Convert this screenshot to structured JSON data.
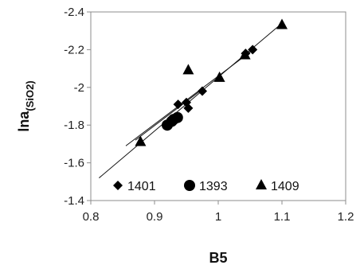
{
  "chart_data": {
    "type": "scatter",
    "xlabel": "B5",
    "ylabel_main": "lna",
    "ylabel_sub": "(SiO2)",
    "xlim": [
      0.8,
      1.2
    ],
    "ylim": [
      -1.4,
      -2.4
    ],
    "y_inverted": true,
    "x_ticks": [
      0.8,
      0.9,
      1.0,
      1.1,
      1.2
    ],
    "x_tick_labels": [
      "0.8",
      "0.9",
      "1",
      "1.1",
      "1.2"
    ],
    "y_ticks": [
      -2.4,
      -2.2,
      -2.0,
      -1.8,
      -1.6,
      -1.4
    ],
    "y_tick_labels": [
      "-2.4",
      "-2.2",
      "-2",
      "-1.8",
      "-1.6",
      "-1.4"
    ],
    "grid": false,
    "legend_position": "bottom",
    "series": [
      {
        "name": "1401",
        "marker": "diamond",
        "points": [
          [
            0.937,
            -1.91
          ],
          [
            0.95,
            -1.92
          ],
          [
            0.953,
            -1.89
          ],
          [
            0.975,
            -1.98
          ],
          [
            1.043,
            -2.18
          ],
          [
            1.054,
            -2.2
          ]
        ]
      },
      {
        "name": "1393",
        "marker": "circle",
        "points": [
          [
            0.92,
            -1.8
          ],
          [
            0.927,
            -1.82
          ],
          [
            0.93,
            -1.83
          ],
          [
            0.936,
            -1.84
          ]
        ]
      },
      {
        "name": "1409",
        "marker": "triangle",
        "points": [
          [
            0.878,
            -1.71
          ],
          [
            0.953,
            -2.09
          ],
          [
            1.002,
            -2.05
          ],
          [
            1.042,
            -2.17
          ],
          [
            1.1,
            -2.33
          ]
        ]
      }
    ],
    "trendlines": [
      {
        "x": [
          0.813,
          1.1
        ],
        "y": [
          -1.52,
          -2.34
        ]
      },
      {
        "x": [
          0.855,
          1.055
        ],
        "y": [
          -1.69,
          -2.2
        ]
      },
      {
        "x": [
          0.87,
          0.975
        ],
        "y": [
          -1.72,
          -1.99
        ]
      }
    ]
  }
}
